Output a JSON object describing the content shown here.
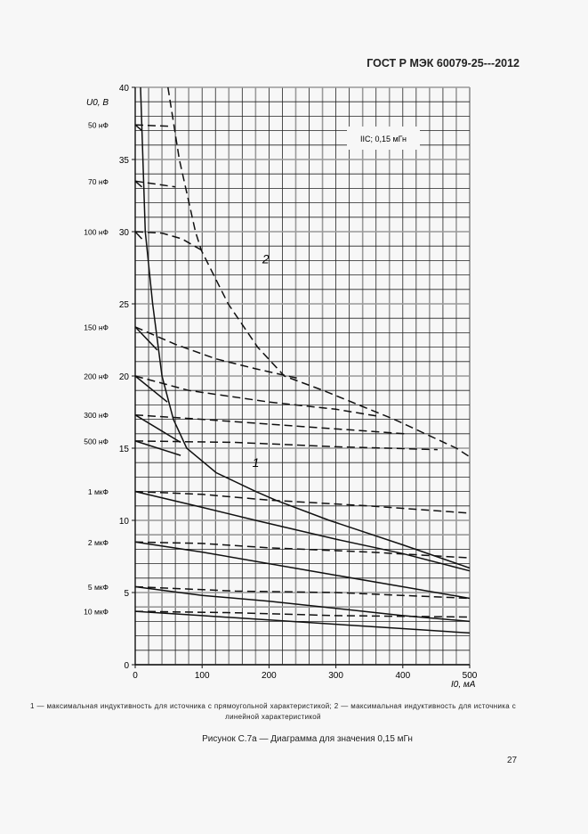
{
  "header": {
    "doc_id": "ГОСТ Р МЭК 60079-25---2012"
  },
  "chart_data": {
    "type": "line",
    "title": "",
    "ylabel": "U0, В",
    "xlabel": "I0, мА",
    "ylabel_main": "U",
    "ylabel_sub": "o",
    "ylabel_unit": ", В",
    "xlabel_main": "I",
    "xlabel_sub": "o",
    "xlabel_unit": ", мА",
    "xlim": [
      0,
      500
    ],
    "ylim": [
      0,
      40
    ],
    "xticks": [
      "0",
      "100",
      "200",
      "300",
      "400",
      "500"
    ],
    "xtick_values": [
      0,
      100,
      200,
      300,
      400,
      500
    ],
    "yticks": [
      "0",
      "5",
      "10",
      "15",
      "20",
      "25",
      "30",
      "35",
      "40"
    ],
    "ytick_values": [
      0,
      5,
      10,
      15,
      20,
      25,
      30,
      35,
      40
    ],
    "grid": true,
    "annotation_box": "IIC; 0,15 мГн",
    "curve_labels": [
      {
        "text": "1",
        "x": 175,
        "y": 13.7
      },
      {
        "text": "2",
        "x": 190,
        "y": 27.8
      }
    ],
    "capacitance_labels": [
      {
        "text": "50 нФ",
        "u": 37.4
      },
      {
        "text": "70 нФ",
        "u": 33.5
      },
      {
        "text": "100 нФ",
        "u": 30
      },
      {
        "text": "150 нФ",
        "u": 23.4
      },
      {
        "text": "200 нФ",
        "u": 20
      },
      {
        "text": "300 нФ",
        "u": 17.3
      },
      {
        "text": "500 нФ",
        "u": 15.5
      },
      {
        "text": "1 мкФ",
        "u": 12
      },
      {
        "text": "2 мкФ",
        "u": 8.5
      },
      {
        "text": "5 мкФ",
        "u": 5.4
      },
      {
        "text": "10 мкФ",
        "u": 3.7
      }
    ],
    "series": [
      {
        "name": "1",
        "style": "solid",
        "points": [
          [
            8,
            40
          ],
          [
            15,
            30
          ],
          [
            26,
            25
          ],
          [
            40,
            20
          ],
          [
            57,
            17
          ],
          [
            77,
            15
          ],
          [
            121,
            13.3
          ],
          [
            180,
            12
          ],
          [
            210,
            11.4
          ],
          [
            290,
            10
          ],
          [
            400,
            8.3
          ],
          [
            500,
            6.7
          ]
        ]
      },
      {
        "name": "2",
        "style": "dashed",
        "points": [
          [
            49,
            40
          ],
          [
            66,
            35
          ],
          [
            90,
            30
          ],
          [
            99,
            28.7
          ],
          [
            139,
            25
          ],
          [
            183,
            22
          ],
          [
            223,
            20
          ],
          [
            281,
            19
          ],
          [
            387,
            17
          ],
          [
            480,
            15
          ],
          [
            500,
            14.4
          ]
        ]
      },
      {
        "name": "50 нФ dashed",
        "style": "dashed",
        "points": [
          [
            0,
            37.4
          ],
          [
            50,
            37.3
          ]
        ]
      },
      {
        "name": "50 нФ solid",
        "style": "solid",
        "points": [
          [
            0,
            37.4
          ],
          [
            10,
            37
          ]
        ]
      },
      {
        "name": "70 нФ dashed",
        "style": "dashed",
        "points": [
          [
            0,
            33.5
          ],
          [
            30,
            33.3
          ],
          [
            60,
            33.1
          ]
        ]
      },
      {
        "name": "70 нФ solid",
        "style": "solid",
        "points": [
          [
            0,
            33.5
          ],
          [
            10,
            33.1
          ]
        ]
      },
      {
        "name": "100 нФ dashed",
        "style": "dashed",
        "points": [
          [
            0,
            30
          ],
          [
            40,
            29.9
          ],
          [
            70,
            29.5
          ],
          [
            100,
            28.7
          ]
        ]
      },
      {
        "name": "100 нФ solid",
        "style": "solid",
        "points": [
          [
            0,
            30
          ],
          [
            10,
            29.5
          ]
        ]
      },
      {
        "name": "150 нФ dashed",
        "style": "dashed",
        "points": [
          [
            0,
            23.4
          ],
          [
            60,
            22.2
          ],
          [
            120,
            21.2
          ],
          [
            180,
            20.5
          ],
          [
            247,
            19.8
          ]
        ]
      },
      {
        "name": "150 нФ solid",
        "style": "solid",
        "points": [
          [
            0,
            23.4
          ],
          [
            33,
            21.8
          ]
        ]
      },
      {
        "name": "200 нФ dashed",
        "style": "dashed",
        "points": [
          [
            0,
            20
          ],
          [
            80,
            19
          ],
          [
            200,
            18.2
          ],
          [
            300,
            17.7
          ],
          [
            365,
            17.2
          ]
        ]
      },
      {
        "name": "200 нФ solid",
        "style": "solid",
        "points": [
          [
            0,
            20
          ],
          [
            48,
            18.2
          ]
        ]
      },
      {
        "name": "300 нФ dashed",
        "style": "dashed",
        "points": [
          [
            0,
            17.3
          ],
          [
            100,
            17
          ],
          [
            250,
            16.5
          ],
          [
            403,
            16
          ]
        ]
      },
      {
        "name": "300 нФ solid",
        "style": "solid",
        "points": [
          [
            0,
            17.3
          ],
          [
            68,
            15.4
          ]
        ]
      },
      {
        "name": "500 нФ dashed",
        "style": "dashed",
        "points": [
          [
            0,
            15.5
          ],
          [
            150,
            15.4
          ],
          [
            300,
            15.1
          ],
          [
            452,
            14.9
          ]
        ]
      },
      {
        "name": "500 нФ solid",
        "style": "solid",
        "points": [
          [
            0,
            15.5
          ],
          [
            68,
            14.5
          ]
        ]
      },
      {
        "name": "1 мкФ dashed",
        "style": "dashed",
        "points": [
          [
            0,
            12
          ],
          [
            100,
            11.8
          ],
          [
            200,
            11.4
          ],
          [
            350,
            11
          ],
          [
            500,
            10.5
          ]
        ]
      },
      {
        "name": "1 мкФ solid",
        "style": "solid",
        "points": [
          [
            0,
            12
          ],
          [
            100,
            10.9
          ],
          [
            180,
            10
          ],
          [
            300,
            8.7
          ],
          [
            400,
            7.7
          ],
          [
            500,
            6.5
          ]
        ]
      },
      {
        "name": "2 мкФ dashed",
        "style": "dashed",
        "points": [
          [
            0,
            8.5
          ],
          [
            100,
            8.4
          ],
          [
            200,
            8.1
          ],
          [
            350,
            7.8
          ],
          [
            500,
            7.4
          ]
        ]
      },
      {
        "name": "2 мкФ solid",
        "style": "solid",
        "points": [
          [
            0,
            8.5
          ],
          [
            100,
            7.8
          ],
          [
            200,
            7
          ],
          [
            300,
            6.2
          ],
          [
            400,
            5.4
          ],
          [
            500,
            4.6
          ]
        ]
      },
      {
        "name": "5 мкФ dashed",
        "style": "dashed",
        "points": [
          [
            0,
            5.4
          ],
          [
            150,
            5.1
          ],
          [
            300,
            5
          ],
          [
            500,
            4.6
          ]
        ]
      },
      {
        "name": "5 мкФ solid",
        "style": "solid",
        "points": [
          [
            0,
            5.4
          ],
          [
            100,
            4.8
          ],
          [
            200,
            4.4
          ],
          [
            300,
            3.9
          ],
          [
            400,
            3.4
          ],
          [
            500,
            3
          ]
        ]
      },
      {
        "name": "10 мкФ dashed",
        "style": "dashed",
        "points": [
          [
            0,
            3.7
          ],
          [
            150,
            3.6
          ],
          [
            300,
            3.4
          ],
          [
            500,
            3.3
          ]
        ]
      },
      {
        "name": "10 мкФ solid",
        "style": "solid",
        "points": [
          [
            0,
            3.7
          ],
          [
            100,
            3.4
          ],
          [
            200,
            3.1
          ],
          [
            300,
            2.8
          ],
          [
            400,
            2.5
          ],
          [
            500,
            2.2
          ]
        ]
      }
    ]
  },
  "notes": "1 — максимальная индуктивность для источника с прямоугольной характеристикой; 2 — максимальная индуктивность для источника с линейной характеристикой",
  "caption": "Рисунок С.7а — Диаграмма для значения 0,15 мГн",
  "page_number": "27"
}
